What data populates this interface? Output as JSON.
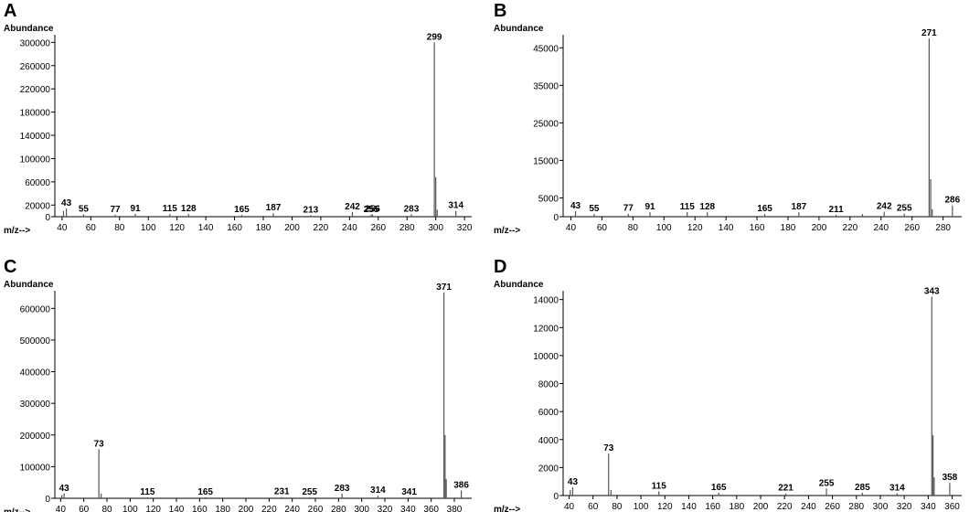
{
  "chart_data": [
    {
      "type": "bar",
      "panel_label": "A",
      "ylabel": "Abundance",
      "xlabel": "m/z-->",
      "xlim": [
        35,
        325
      ],
      "ylim": [
        0,
        310000
      ],
      "xticks": [
        40,
        60,
        80,
        100,
        120,
        140,
        160,
        180,
        200,
        220,
        240,
        260,
        280,
        300,
        320
      ],
      "yticks": [
        0,
        20000,
        60000,
        100000,
        140000,
        180000,
        220000,
        260000,
        300000
      ],
      "peaks": [
        {
          "mz": 41,
          "intensity": 10000
        },
        {
          "mz": 43,
          "intensity": 14000,
          "label": "43"
        },
        {
          "mz": 55,
          "intensity": 4000,
          "label": "55"
        },
        {
          "mz": 77,
          "intensity": 3500,
          "label": "77"
        },
        {
          "mz": 91,
          "intensity": 5000,
          "label": "91"
        },
        {
          "mz": 115,
          "intensity": 4500,
          "label": "115"
        },
        {
          "mz": 128,
          "intensity": 5000,
          "label": "128"
        },
        {
          "mz": 165,
          "intensity": 3000,
          "label": "165"
        },
        {
          "mz": 187,
          "intensity": 6000,
          "label": "187"
        },
        {
          "mz": 213,
          "intensity": 2500,
          "label": "213"
        },
        {
          "mz": 242,
          "intensity": 8000,
          "label": "242"
        },
        {
          "mz": 255,
          "intensity": 3500,
          "label": "255"
        },
        {
          "mz": 256,
          "intensity": 4000,
          "label": "256"
        },
        {
          "mz": 283,
          "intensity": 4000,
          "label": "283"
        },
        {
          "mz": 299,
          "intensity": 300000,
          "label": "299"
        },
        {
          "mz": 300,
          "intensity": 68000
        },
        {
          "mz": 301,
          "intensity": 12000
        },
        {
          "mz": 314,
          "intensity": 10000,
          "label": "314"
        }
      ]
    },
    {
      "type": "bar",
      "panel_label": "B",
      "ylabel": "Abundance",
      "xlabel": "m/z-->",
      "xlim": [
        35,
        292
      ],
      "ylim": [
        0,
        48000
      ],
      "xticks": [
        40,
        60,
        80,
        100,
        120,
        140,
        160,
        180,
        200,
        220,
        240,
        260,
        280
      ],
      "yticks": [
        0,
        5000,
        15000,
        25000,
        35000,
        45000
      ],
      "peaks": [
        {
          "mz": 43,
          "intensity": 1500,
          "label": "43"
        },
        {
          "mz": 55,
          "intensity": 700,
          "label": "55"
        },
        {
          "mz": 77,
          "intensity": 800,
          "label": "77"
        },
        {
          "mz": 91,
          "intensity": 1200,
          "label": "91"
        },
        {
          "mz": 115,
          "intensity": 1200,
          "label": "115"
        },
        {
          "mz": 128,
          "intensity": 1200,
          "label": "128"
        },
        {
          "mz": 165,
          "intensity": 700,
          "label": "165"
        },
        {
          "mz": 187,
          "intensity": 1200,
          "label": "187"
        },
        {
          "mz": 211,
          "intensity": 500,
          "label": "211"
        },
        {
          "mz": 228,
          "intensity": 700
        },
        {
          "mz": 242,
          "intensity": 1300,
          "label": "242"
        },
        {
          "mz": 255,
          "intensity": 800,
          "label": "255"
        },
        {
          "mz": 271,
          "intensity": 47500,
          "label": "271"
        },
        {
          "mz": 272,
          "intensity": 10000
        },
        {
          "mz": 273,
          "intensity": 2000
        },
        {
          "mz": 286,
          "intensity": 3000,
          "label": "286"
        }
      ]
    },
    {
      "type": "bar",
      "panel_label": "C",
      "ylabel": "Abundance",
      "xlabel": "m/z-->",
      "xlim": [
        35,
        395
      ],
      "ylim": [
        0,
        650000
      ],
      "xticks": [
        40,
        60,
        80,
        100,
        120,
        140,
        160,
        180,
        200,
        220,
        240,
        260,
        280,
        300,
        320,
        340,
        360,
        380
      ],
      "yticks": [
        0,
        100000,
        200000,
        300000,
        400000,
        500000,
        600000
      ],
      "peaks": [
        {
          "mz": 41,
          "intensity": 10000
        },
        {
          "mz": 43,
          "intensity": 15000,
          "label": "43"
        },
        {
          "mz": 73,
          "intensity": 155000,
          "label": "73"
        },
        {
          "mz": 75,
          "intensity": 15000
        },
        {
          "mz": 115,
          "intensity": 3000,
          "label": "115"
        },
        {
          "mz": 165,
          "intensity": 3000,
          "label": "165"
        },
        {
          "mz": 231,
          "intensity": 4000,
          "label": "231"
        },
        {
          "mz": 255,
          "intensity": 3500,
          "label": "255"
        },
        {
          "mz": 283,
          "intensity": 15000,
          "label": "283"
        },
        {
          "mz": 314,
          "intensity": 8000,
          "label": "314"
        },
        {
          "mz": 341,
          "intensity": 3000,
          "label": "341"
        },
        {
          "mz": 371,
          "intensity": 650000,
          "label": "371"
        },
        {
          "mz": 372,
          "intensity": 200000
        },
        {
          "mz": 373,
          "intensity": 60000
        },
        {
          "mz": 386,
          "intensity": 25000,
          "label": "386"
        }
      ]
    },
    {
      "type": "bar",
      "panel_label": "D",
      "ylabel": "Abundance",
      "xlabel": "m/z-->",
      "xlim": [
        35,
        368
      ],
      "ylim": [
        0,
        14500
      ],
      "xticks": [
        40,
        60,
        80,
        100,
        120,
        140,
        160,
        180,
        200,
        220,
        240,
        260,
        280,
        300,
        320,
        340,
        360
      ],
      "yticks": [
        0,
        2000,
        4000,
        6000,
        8000,
        10000,
        12000,
        14000
      ],
      "peaks": [
        {
          "mz": 41,
          "intensity": 400
        },
        {
          "mz": 43,
          "intensity": 600,
          "label": "43"
        },
        {
          "mz": 73,
          "intensity": 3000,
          "label": "73"
        },
        {
          "mz": 75,
          "intensity": 400
        },
        {
          "mz": 115,
          "intensity": 300,
          "label": "115"
        },
        {
          "mz": 165,
          "intensity": 200,
          "label": "165"
        },
        {
          "mz": 221,
          "intensity": 150,
          "label": "221"
        },
        {
          "mz": 255,
          "intensity": 500,
          "label": "255"
        },
        {
          "mz": 285,
          "intensity": 200,
          "label": "285"
        },
        {
          "mz": 314,
          "intensity": 150,
          "label": "314"
        },
        {
          "mz": 343,
          "intensity": 14200,
          "label": "343"
        },
        {
          "mz": 344,
          "intensity": 4300
        },
        {
          "mz": 345,
          "intensity": 1300
        },
        {
          "mz": 358,
          "intensity": 900,
          "label": "358"
        }
      ]
    }
  ]
}
